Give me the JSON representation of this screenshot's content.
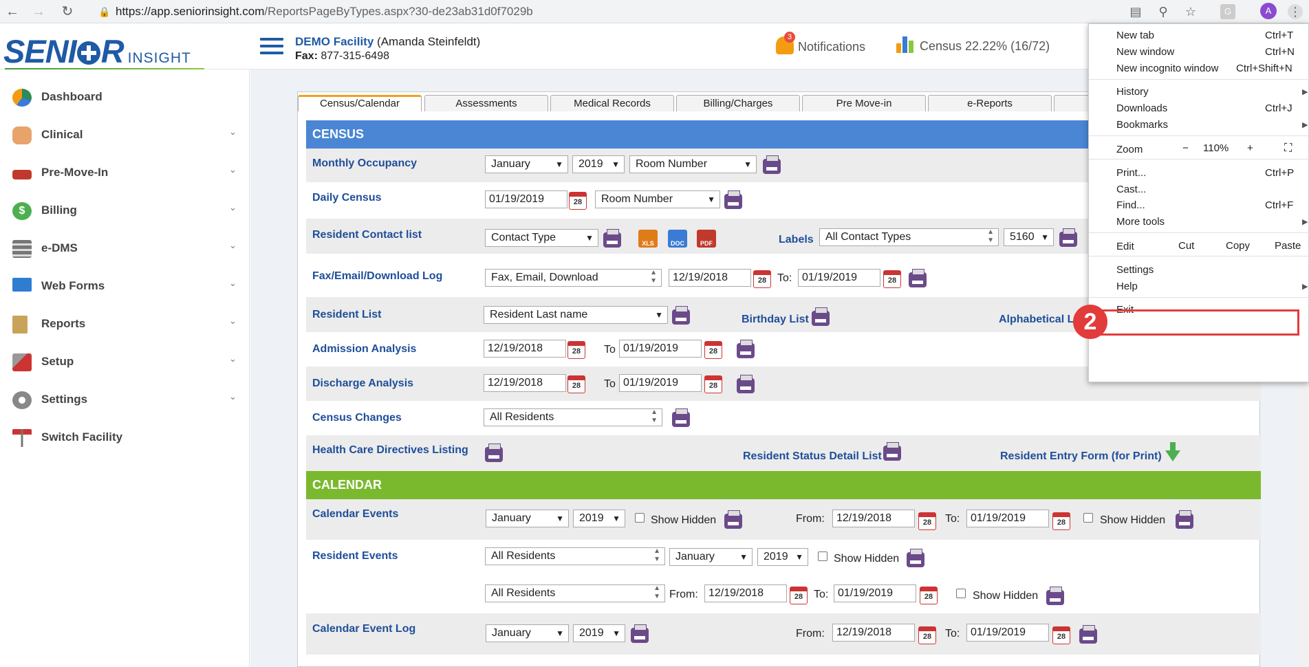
{
  "browser": {
    "url_main": "https://app.seniorinsight.com",
    "url_path": "/ReportsPageByTypes.aspx?30-de23ab31d0f7029b",
    "avatar": "A"
  },
  "header": {
    "logo_big_1": "SENI",
    "logo_big_2": "R",
    "logo_small": "INSIGHT",
    "facility_name": "DEMO Facility",
    "facility_user": "(Amanda Steinfeldt)",
    "fax_label": "Fax:",
    "fax_value": "877-315-6498",
    "notif_count": "3",
    "notif_label": "Notifications",
    "census_label": "Census 22.22% (16/72)"
  },
  "sidebar": {
    "items": [
      {
        "label": "Dashboard",
        "icon": "globe-icon"
      },
      {
        "label": "Clinical",
        "icon": "users-icon"
      },
      {
        "label": "Pre-Move-In",
        "icon": "bed-icon"
      },
      {
        "label": "Billing",
        "icon": "dollar-icon"
      },
      {
        "label": "e-DMS",
        "icon": "stack-icon"
      },
      {
        "label": "Web Forms",
        "icon": "monitor-icon"
      },
      {
        "label": "Reports",
        "icon": "clipboard-icon"
      },
      {
        "label": "Setup",
        "icon": "wrench-icon"
      },
      {
        "label": "Settings",
        "icon": "gear-icon"
      },
      {
        "label": "Switch Facility",
        "icon": "signpost-icon"
      }
    ]
  },
  "tabs": [
    "Census/Calendar",
    "Assessments",
    "Medical Records",
    "Billing/Charges",
    "Pre Move-in",
    "e-Reports"
  ],
  "census": {
    "title": "CENSUS",
    "monthly_occupancy": {
      "label": "Monthly Occupancy",
      "month": "January",
      "year": "2019",
      "sort": "Room Number"
    },
    "daily_census": {
      "label": "Daily Census",
      "date": "01/19/2019",
      "cal": "28",
      "sort": "Room Number"
    },
    "contact_list": {
      "label": "Resident Contact list",
      "type": "Contact Type",
      "xls": "XLS",
      "doc": "DOC",
      "pdf": "PDF",
      "labels_label": "Labels",
      "labels_type": "All Contact Types",
      "labels_size": "5160"
    },
    "fax_log": {
      "label": "Fax/Email/Download Log",
      "type": "Fax, Email, Download",
      "from": "12/19/2018",
      "to_label": "To:",
      "to": "01/19/2019"
    },
    "resident_list": {
      "label": "Resident List",
      "sort": "Resident Last name",
      "birthday": "Birthday List",
      "alpha": "Alphabetical Li"
    },
    "admission": {
      "label": "Admission Analysis",
      "from": "12/19/2018",
      "to_label": "To",
      "to": "01/19/2019"
    },
    "discharge": {
      "label": "Discharge Analysis",
      "from": "12/19/2018",
      "to_label": "To",
      "to": "01/19/2019"
    },
    "changes": {
      "label": "Census Changes",
      "filter": "All Residents"
    },
    "directives": {
      "label": "Health Care Directives Listing",
      "status": "Resident Status Detail List",
      "entry": "Resident Entry Form (for Print)"
    }
  },
  "calendar": {
    "title": "CALENDAR",
    "events": {
      "label": "Calendar Events",
      "month": "January",
      "year": "2019",
      "show_hidden": "Show Hidden",
      "from_label": "From:",
      "from": "12/19/2018",
      "to_label": "To:",
      "to": "01/19/2019"
    },
    "resident_events": {
      "label": "Resident Events",
      "filter": "All Residents",
      "month": "January",
      "year": "2019",
      "show_hidden": "Show Hidden",
      "filter2": "All Residents",
      "from_label": "From:",
      "from": "12/19/2018",
      "to_label": "To:",
      "to": "01/19/2019"
    },
    "event_log": {
      "label": "Calendar Event Log",
      "month": "January",
      "year": "2019",
      "from_label": "From:",
      "from": "12/19/2018",
      "to_label": "To:",
      "to": "01/19/2019"
    }
  },
  "menu": {
    "new_tab": "New tab",
    "new_tab_key": "Ctrl+T",
    "new_window": "New window",
    "new_window_key": "Ctrl+N",
    "incognito": "New incognito window",
    "incognito_key": "Ctrl+Shift+N",
    "history": "History",
    "downloads": "Downloads",
    "downloads_key": "Ctrl+J",
    "bookmarks": "Bookmarks",
    "zoom": "Zoom",
    "zoom_minus": "−",
    "zoom_value": "110%",
    "zoom_plus": "+",
    "print": "Print...",
    "print_key": "Ctrl+P",
    "cast": "Cast...",
    "find": "Find...",
    "find_key": "Ctrl+F",
    "more_tools": "More tools",
    "edit": "Edit",
    "cut": "Cut",
    "copy": "Copy",
    "paste": "Paste",
    "settings": "Settings",
    "help": "Help",
    "exit": "Exit"
  },
  "annotation": {
    "step": "2"
  },
  "colors": {
    "brand": "#1f5aa6",
    "census_header": "#4a86d4",
    "calendar_header": "#7ab92e",
    "highlight": "#e23b3b"
  }
}
